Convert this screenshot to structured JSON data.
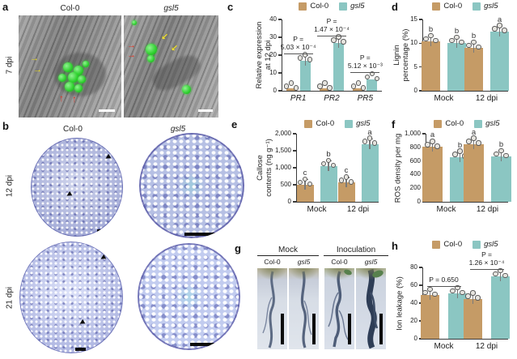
{
  "colors": {
    "col0_bar": "#C59B66",
    "gsl5_bar": "#8BC6C2",
    "axis": "#3A3A3A",
    "dot_fill": "#E6E4DF",
    "dot_stroke": "#5A5A5A"
  },
  "legend": {
    "items": [
      {
        "label": "Col-0",
        "color_key": "col0_bar",
        "italic": false
      },
      {
        "label": "gsl5",
        "color_key": "gsl5_bar",
        "italic": true
      }
    ]
  },
  "panels": {
    "a": {
      "label": "a",
      "row_label": "7 dpi",
      "columns": [
        {
          "title": "Col-0",
          "italic": false
        },
        {
          "title": "gsl5",
          "italic": true
        }
      ]
    },
    "b": {
      "label": "b",
      "row_labels": [
        "12 dpi",
        "21 dpi"
      ],
      "col_titles": [
        {
          "title": "Col-0",
          "italic": false
        },
        {
          "title": "gsl5",
          "italic": true
        }
      ]
    },
    "g": {
      "label": "g",
      "groups": [
        {
          "title": "Mock",
          "columns": [
            {
              "title": "Col-0",
              "italic": false
            },
            {
              "title": "gsl5",
              "italic": true
            }
          ]
        },
        {
          "title": "Inoculation",
          "columns": [
            {
              "title": "Col-0",
              "italic": false
            },
            {
              "title": "gsl5",
              "italic": true
            }
          ]
        }
      ]
    }
  },
  "chart_data": [
    {
      "id": "c",
      "type": "bar",
      "panel_label": "c",
      "ylabel_lines": [
        "Relative expression",
        "at 12 dpi"
      ],
      "ylim": [
        0,
        40
      ],
      "yticks": [
        0,
        10,
        20,
        30,
        40
      ],
      "categories": [
        "PR1",
        "PR2",
        "PR5"
      ],
      "categories_italic": true,
      "series": [
        {
          "name": "Col-0",
          "color_key": "col0_bar",
          "values": [
            1.2,
            1.2,
            1.2
          ]
        },
        {
          "name": "gsl5",
          "color_key": "gsl5_bar",
          "values": [
            17,
            27,
            6.5
          ]
        }
      ],
      "p_values": [
        {
          "category": "PR1",
          "lines": [
            "P =",
            "5.03 × 10⁻⁴"
          ]
        },
        {
          "category": "PR2",
          "lines": [
            "P =",
            "1.47 × 10⁻⁴"
          ]
        },
        {
          "category": "PR5",
          "lines": [
            "P =",
            "5.12 × 10⁻³"
          ]
        }
      ]
    },
    {
      "id": "d",
      "type": "bar",
      "panel_label": "d",
      "ylabel_lines": [
        "Lignin",
        "percentage (%)"
      ],
      "ylim": [
        0,
        15
      ],
      "yticks": [
        0,
        5,
        10,
        15
      ],
      "categories": [
        "Mock",
        "12 dpi"
      ],
      "series": [
        {
          "name": "Col-0",
          "color_key": "col0_bar",
          "values": [
            10.4,
            9.0
          ],
          "letters": [
            "b",
            "b"
          ]
        },
        {
          "name": "gsl5",
          "color_key": "gsl5_bar",
          "values": [
            10.1,
            12.5
          ],
          "letters": [
            "b",
            "a"
          ]
        }
      ]
    },
    {
      "id": "e",
      "type": "bar",
      "panel_label": "e",
      "ylabel_lines": [
        "Callose",
        "contents (ng g⁻¹)"
      ],
      "ylim": [
        0,
        2000
      ],
      "yticks": [
        0,
        500,
        1000,
        1500,
        2000
      ],
      "ytick_labels": [
        "0",
        "500",
        "1,000",
        "1,500",
        "2,000"
      ],
      "categories": [
        "Mock",
        "12 dpi"
      ],
      "series": [
        {
          "name": "Col-0",
          "color_key": "col0_bar",
          "values": [
            500,
            560
          ],
          "letters": [
            "c",
            "c"
          ]
        },
        {
          "name": "gsl5",
          "color_key": "gsl5_bar",
          "values": [
            1050,
            1700
          ],
          "letters": [
            "b",
            "a"
          ]
        }
      ]
    },
    {
      "id": "f",
      "type": "bar",
      "panel_label": "f",
      "ylabel_lines": [
        "ROS density per mg"
      ],
      "ylim": [
        0,
        1000
      ],
      "yticks": [
        0,
        200,
        400,
        600,
        800,
        1000
      ],
      "ytick_labels": [
        "0",
        "200",
        "400",
        "600",
        "800",
        "1,000"
      ],
      "categories": [
        "Mock",
        "12 dpi"
      ],
      "series": [
        {
          "name": "Col-0",
          "color_key": "col0_bar",
          "values": [
            805,
            850
          ],
          "letters": [
            "a",
            "a"
          ]
        },
        {
          "name": "gsl5",
          "color_key": "gsl5_bar",
          "values": [
            660,
            668
          ],
          "letters": [
            "b",
            "b"
          ]
        }
      ]
    },
    {
      "id": "h",
      "type": "bar",
      "panel_label": "h",
      "ylabel_lines": [
        "Ion leakage (%)"
      ],
      "ylim": [
        0,
        80
      ],
      "yticks": [
        0,
        20,
        40,
        60,
        80
      ],
      "categories": [
        "Mock",
        "12 dpi"
      ],
      "series": [
        {
          "name": "Col-0",
          "color_key": "col0_bar",
          "values": [
            49,
            45
          ]
        },
        {
          "name": "gsl5",
          "color_key": "gsl5_bar",
          "values": [
            51,
            70
          ]
        }
      ],
      "p_values": [
        {
          "category": "Mock",
          "lines": [
            "P = 0.650"
          ]
        },
        {
          "category": "12 dpi",
          "lines": [
            "P =",
            "1.26 × 10⁻⁴"
          ]
        }
      ]
    }
  ]
}
